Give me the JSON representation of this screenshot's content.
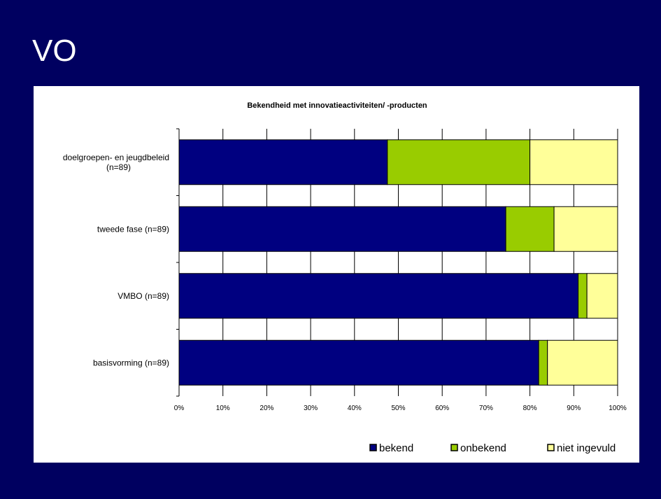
{
  "slide": {
    "title": "VO"
  },
  "colors": {
    "background": "#000060",
    "bekend": "#000080",
    "onbekend": "#99cc00",
    "niet_ingevuld": "#ffff99"
  },
  "chart_data": {
    "type": "bar",
    "orientation": "horizontal",
    "stacked": "percent",
    "title": "Bekendheid met innovatieactiviteiten/ -producten",
    "categories": [
      [
        "doelgroepen- en jeugdbeleid",
        "(n=89)"
      ],
      [
        "tweede fase (n=89)"
      ],
      [
        "VMBO (n=89)"
      ],
      [
        "basisvorming (n=89)"
      ]
    ],
    "series": [
      {
        "name": "bekend",
        "color": "#000080",
        "values": [
          47.5,
          74.5,
          91,
          82
        ]
      },
      {
        "name": "onbekend",
        "color": "#99cc00",
        "values": [
          32.5,
          11,
          2,
          2
        ]
      },
      {
        "name": "niet ingevuld",
        "color": "#ffff99",
        "values": [
          20,
          14.5,
          7,
          16
        ]
      }
    ],
    "x_ticks": [
      "0%",
      "10%",
      "20%",
      "30%",
      "40%",
      "50%",
      "60%",
      "70%",
      "80%",
      "90%",
      "100%"
    ],
    "xlim": [
      0,
      100
    ],
    "grid": true,
    "legend_position": "bottom-right"
  }
}
